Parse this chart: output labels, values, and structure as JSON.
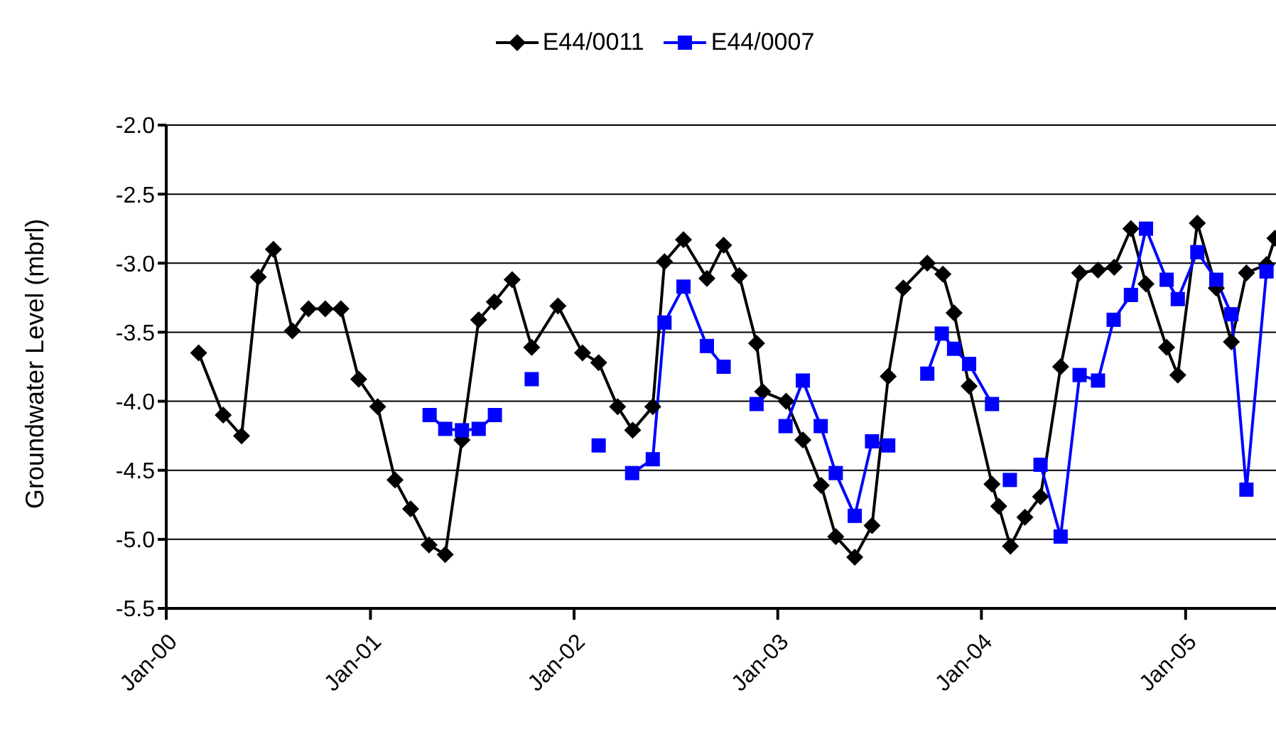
{
  "chart_data": {
    "type": "line",
    "ylabel": "Groundwater Level (mbrl)",
    "legend": "top",
    "grid": "y",
    "xlim": [
      "2000-01-01",
      "2005-06-12"
    ],
    "xticks": [
      {
        "value": "2000-01-01",
        "label": "Jan-00"
      },
      {
        "value": "2001-01-01",
        "label": "Jan-01"
      },
      {
        "value": "2002-01-01",
        "label": "Jan-02"
      },
      {
        "value": "2003-01-01",
        "label": "Jan-03"
      },
      {
        "value": "2004-01-01",
        "label": "Jan-04"
      },
      {
        "value": "2005-01-01",
        "label": "Jan-05"
      }
    ],
    "ylim": [
      -5.5,
      -2.0
    ],
    "yticks": [
      {
        "value": -5.5,
        "label": "-5.5"
      },
      {
        "value": -5.0,
        "label": "-5.0"
      },
      {
        "value": -4.5,
        "label": "-4.5"
      },
      {
        "value": -4.0,
        "label": "-4.0"
      },
      {
        "value": -3.5,
        "label": "-3.5"
      },
      {
        "value": -3.0,
        "label": "-3.0"
      },
      {
        "value": -2.5,
        "label": "-2.5"
      },
      {
        "value": -2.0,
        "label": "-2.0"
      }
    ],
    "series": [
      {
        "name": "E44/0011",
        "color": "#000000",
        "marker": "diamond",
        "x": [
          "2000-02-28",
          "2000-04-12",
          "2000-05-15",
          "2000-06-14",
          "2000-07-11",
          "2000-08-14",
          "2000-09-12",
          "2000-10-12",
          "2000-11-09",
          "2000-12-11",
          "2001-01-14",
          "2001-02-14",
          "2001-03-14",
          "2001-04-16",
          "2001-05-15",
          "2001-06-14",
          "2001-07-14",
          "2001-08-11",
          "2001-09-12",
          "2001-10-17",
          "2001-12-03",
          "2002-01-16",
          "2002-02-14",
          "2002-03-20",
          "2002-04-16",
          "2002-05-22",
          "2002-06-12",
          "2002-07-16",
          "2002-08-27",
          "2002-09-26",
          "2002-10-24",
          "2002-11-24",
          "2002-12-05",
          "2003-01-16",
          "2003-02-15",
          "2003-03-20",
          "2003-04-15",
          "2003-05-19",
          "2003-06-19",
          "2003-07-18",
          "2003-08-14",
          "2003-09-26",
          "2003-10-24",
          "2003-11-13",
          "2003-12-10",
          "2004-01-20",
          "2004-02-01",
          "2004-02-22",
          "2004-03-19",
          "2004-04-16",
          "2004-05-22",
          "2004-06-25",
          "2004-07-28",
          "2004-08-26",
          "2004-09-25",
          "2004-10-22",
          "2004-11-28",
          "2004-12-18",
          "2005-01-22",
          "2005-02-25",
          "2005-03-24",
          "2005-04-20",
          "2005-05-26",
          "2005-06-10"
        ],
        "values": [
          -3.65,
          -4.1,
          -4.25,
          -3.1,
          -2.9,
          -3.49,
          -3.33,
          -3.33,
          -3.33,
          -3.84,
          -4.04,
          -4.57,
          -4.78,
          -5.04,
          -5.11,
          -4.28,
          -3.41,
          -3.28,
          -3.12,
          -3.61,
          -3.31,
          -3.65,
          -3.72,
          -4.04,
          -4.21,
          -4.04,
          -2.99,
          -2.83,
          -3.11,
          -2.87,
          -3.09,
          -3.58,
          -3.93,
          -4.0,
          -4.28,
          -4.61,
          -4.98,
          -5.13,
          -4.9,
          -3.82,
          -3.18,
          -3.0,
          -3.08,
          -3.36,
          -3.89,
          -4.6,
          -4.76,
          -5.05,
          -4.84,
          -4.69,
          -3.75,
          -3.07,
          -3.05,
          -3.03,
          -2.75,
          -3.15,
          -3.61,
          -3.81,
          -2.71,
          -3.18,
          -3.57,
          -3.07,
          -3.01,
          -2.82
        ]
      },
      {
        "name": "E44/0007",
        "color": "#0000ff",
        "marker": "square",
        "x": [
          "2001-04-17",
          "2001-05-15",
          "2001-06-14",
          "2001-07-14",
          "2001-08-12",
          "2001-09-12",
          "2001-10-17",
          "2001-12-03",
          "2002-02-14",
          "2002-03-20",
          "2002-04-15",
          "2002-05-22",
          "2002-06-12",
          "2002-07-16",
          "2002-08-27",
          "2002-09-26",
          "2002-10-24",
          "2002-11-24",
          "2002-12-05",
          "2003-01-15",
          "2003-02-15",
          "2003-03-19",
          "2003-04-15",
          "2003-05-19",
          "2003-06-19",
          "2003-07-18",
          "2003-08-14",
          "2003-09-26",
          "2003-10-22",
          "2003-11-13",
          "2003-12-10",
          "2004-01-20",
          "2004-02-01",
          "2004-02-21",
          "2004-03-19",
          "2004-04-16",
          "2004-05-22",
          "2004-06-25",
          "2004-07-28",
          "2004-08-25",
          "2004-09-25",
          "2004-10-22",
          "2004-11-28",
          "2004-12-18",
          "2005-01-22",
          "2005-02-25",
          "2005-03-24",
          "2005-04-20",
          "2005-05-26"
        ],
        "values": [
          -4.1,
          -4.2,
          -4.21,
          -4.2,
          -4.1,
          null,
          -3.84,
          null,
          -4.32,
          null,
          -4.52,
          -4.42,
          -3.43,
          -3.17,
          -3.6,
          -3.75,
          null,
          -4.02,
          null,
          -4.18,
          -3.85,
          -4.18,
          -4.52,
          -4.83,
          -4.29,
          -4.32,
          null,
          -3.8,
          -3.51,
          -3.62,
          -3.73,
          -4.02,
          null,
          -4.57,
          null,
          -4.46,
          -4.98,
          -3.81,
          -3.85,
          -3.41,
          -3.23,
          -2.75,
          -3.12,
          -3.26,
          -2.92,
          -3.12,
          -3.37,
          -4.64,
          -3.06
        ]
      }
    ]
  }
}
